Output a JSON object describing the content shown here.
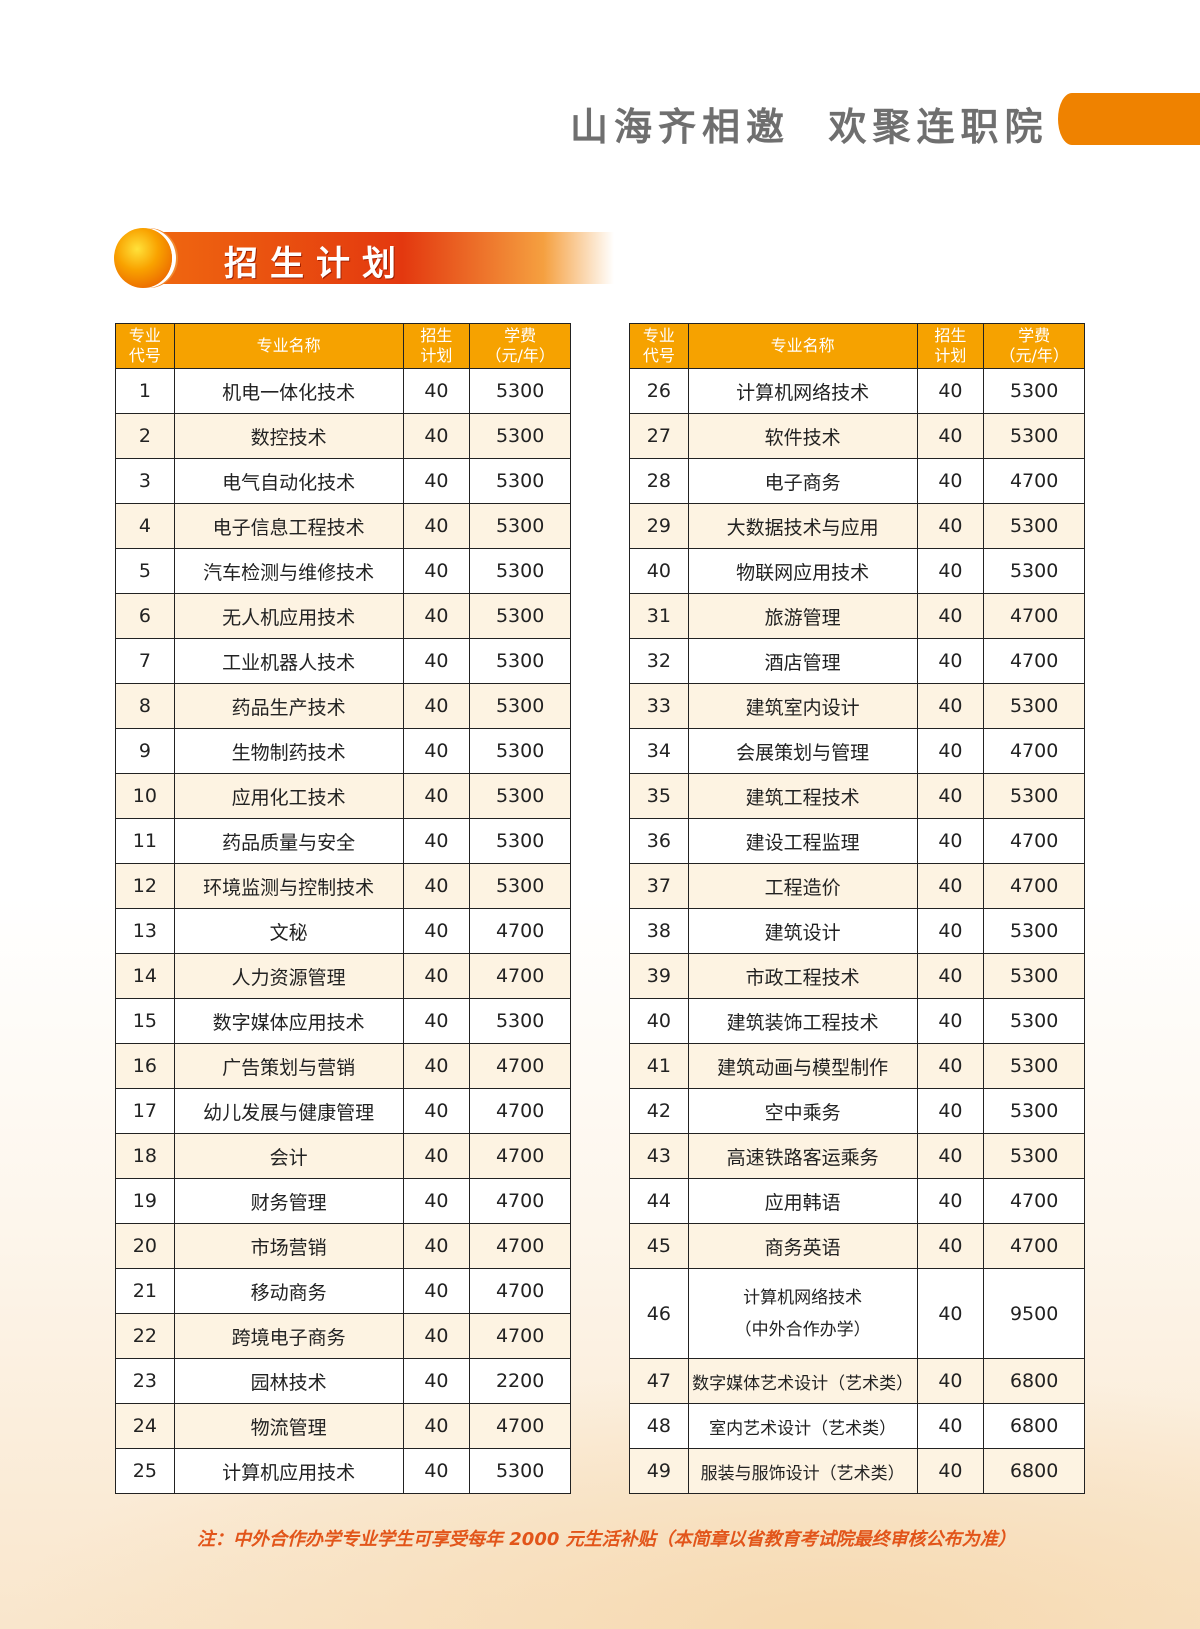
{
  "header": {
    "slogan": "山海齐相邀  欢聚连职院",
    "accent": "#ef8200"
  },
  "section": {
    "title": "招生计划"
  },
  "table": {
    "headers": [
      "专业\n代号",
      "专业名称",
      "招生\n计划",
      "学费\n（元/年）"
    ],
    "left_rows": [
      [
        "1",
        "机电一体化技术",
        "40",
        "5300"
      ],
      [
        "2",
        "数控技术",
        "40",
        "5300"
      ],
      [
        "3",
        "电气自动化技术",
        "40",
        "5300"
      ],
      [
        "4",
        "电子信息工程技术",
        "40",
        "5300"
      ],
      [
        "5",
        "汽车检测与维修技术",
        "40",
        "5300"
      ],
      [
        "6",
        "无人机应用技术",
        "40",
        "5300"
      ],
      [
        "7",
        "工业机器人技术",
        "40",
        "5300"
      ],
      [
        "8",
        "药品生产技术",
        "40",
        "5300"
      ],
      [
        "9",
        "生物制药技术",
        "40",
        "5300"
      ],
      [
        "10",
        "应用化工技术",
        "40",
        "5300"
      ],
      [
        "11",
        "药品质量与安全",
        "40",
        "5300"
      ],
      [
        "12",
        "环境监测与控制技术",
        "40",
        "5300"
      ],
      [
        "13",
        "文秘",
        "40",
        "4700"
      ],
      [
        "14",
        "人力资源管理",
        "40",
        "4700"
      ],
      [
        "15",
        "数字媒体应用技术",
        "40",
        "5300"
      ],
      [
        "16",
        "广告策划与营销",
        "40",
        "4700"
      ],
      [
        "17",
        "幼儿发展与健康管理",
        "40",
        "4700"
      ],
      [
        "18",
        "会计",
        "40",
        "4700"
      ],
      [
        "19",
        "财务管理",
        "40",
        "4700"
      ],
      [
        "20",
        "市场营销",
        "40",
        "4700"
      ],
      [
        "21",
        "移动商务",
        "40",
        "4700"
      ],
      [
        "22",
        "跨境电子商务",
        "40",
        "4700"
      ],
      [
        "23",
        "园林技术",
        "40",
        "2200"
      ],
      [
        "24",
        "物流管理",
        "40",
        "4700"
      ],
      [
        "25",
        "计算机应用技术",
        "40",
        "5300"
      ]
    ],
    "right_rows": [
      [
        "26",
        "计算机网络技术",
        "40",
        "5300"
      ],
      [
        "27",
        "软件技术",
        "40",
        "5300"
      ],
      [
        "28",
        "电子商务",
        "40",
        "4700"
      ],
      [
        "29",
        "大数据技术与应用",
        "40",
        "5300"
      ],
      [
        "40",
        "物联网应用技术",
        "40",
        "5300"
      ],
      [
        "31",
        "旅游管理",
        "40",
        "4700"
      ],
      [
        "32",
        "酒店管理",
        "40",
        "4700"
      ],
      [
        "33",
        "建筑室内设计",
        "40",
        "5300"
      ],
      [
        "34",
        "会展策划与管理",
        "40",
        "4700"
      ],
      [
        "35",
        "建筑工程技术",
        "40",
        "5300"
      ],
      [
        "36",
        "建设工程监理",
        "40",
        "4700"
      ],
      [
        "37",
        "工程造价",
        "40",
        "4700"
      ],
      [
        "38",
        "建筑设计",
        "40",
        "5300"
      ],
      [
        "39",
        "市政工程技术",
        "40",
        "5300"
      ],
      [
        "40",
        "建筑装饰工程技术",
        "40",
        "5300"
      ],
      [
        "41",
        "建筑动画与模型制作",
        "40",
        "5300"
      ],
      [
        "42",
        "空中乘务",
        "40",
        "5300"
      ],
      [
        "43",
        "高速铁路客运乘务",
        "40",
        "5300"
      ],
      [
        "44",
        "应用韩语",
        "40",
        "4700"
      ],
      [
        "45",
        "商务英语",
        "40",
        "4700"
      ],
      [
        "46",
        "计算机网络技术\n（中外合作办学）",
        "40",
        "9500"
      ],
      [
        "47",
        "数字媒体艺术设计（艺术类）",
        "40",
        "6800"
      ],
      [
        "48",
        "室内艺术设计（艺术类）",
        "40",
        "6800"
      ],
      [
        "49",
        "服装与服饰设计（艺术类）",
        "40",
        "6800"
      ]
    ]
  },
  "footnote": "注：中外合作办学专业学生可享受每年 2000 元生活补贴（本简章以省教育考试院最终审核公布为准）"
}
